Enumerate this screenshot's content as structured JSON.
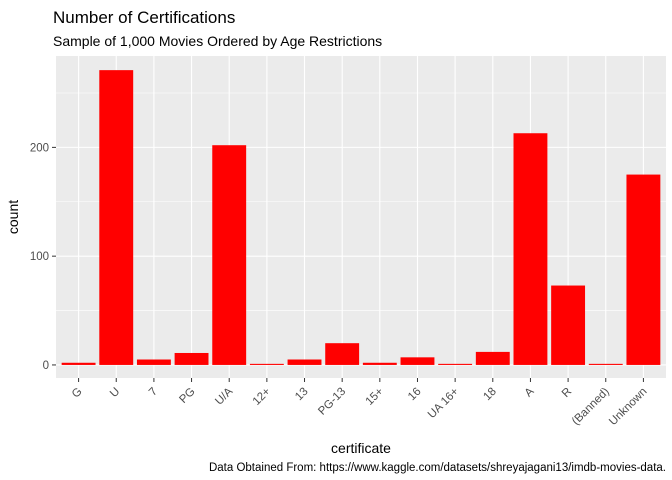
{
  "chart_data": {
    "type": "bar",
    "title": "Number of Certifications",
    "subtitle": "Sample of 1,000 Movies Ordered by Age Restrictions",
    "xlabel": "certificate",
    "ylabel": "count",
    "caption": "Data Obtained From: https://www.kaggle.com/datasets/shreyajagani13/imdb-movies-data.",
    "categories": [
      "G",
      "U",
      "7",
      "PG",
      "U/A",
      "12+",
      "13",
      "PG-13",
      "15+",
      "16",
      "UA 16+",
      "18",
      "A",
      "R",
      "(Banned)",
      "Unknown"
    ],
    "values": [
      2,
      271,
      5,
      11,
      202,
      1,
      5,
      20,
      2,
      7,
      1,
      12,
      213,
      73,
      1,
      175
    ],
    "ylim": [
      -12,
      284
    ],
    "yticks": [
      0,
      100,
      200
    ],
    "grid": true,
    "legend": "none",
    "bar_color": "#FF0000",
    "panel_color": "#EBEBEB",
    "grid_color": "#FFFFFF"
  }
}
